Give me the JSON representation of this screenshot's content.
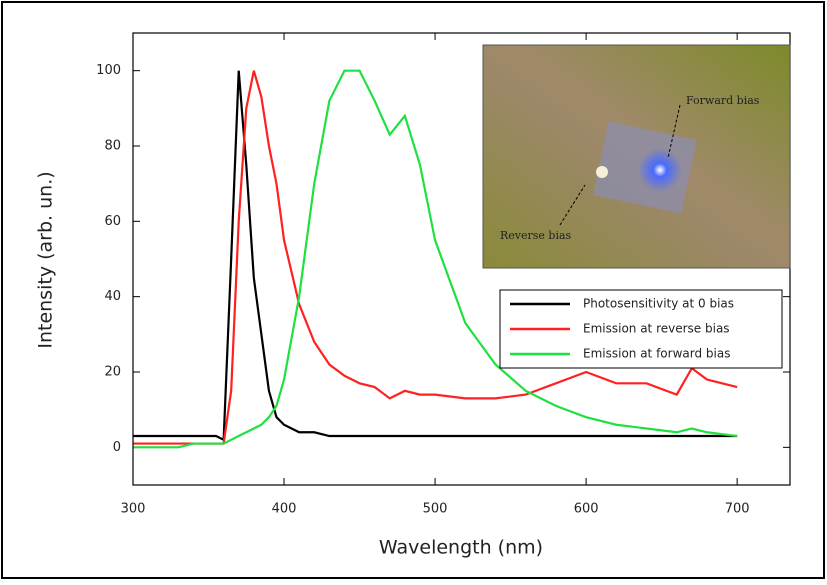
{
  "chart_data": {
    "type": "line",
    "x_label": "Wavelength (nm)",
    "y_label": "Intensity (arb. un.)",
    "x": [
      300,
      310,
      320,
      330,
      340,
      350,
      355,
      360,
      365,
      370,
      375,
      380,
      385,
      390,
      395,
      400,
      410,
      420,
      430,
      440,
      450,
      460,
      470,
      480,
      490,
      500,
      520,
      540,
      560,
      580,
      600,
      620,
      640,
      660,
      670,
      680,
      700
    ],
    "series": [
      {
        "name": "Photosensitivity at 0 bias",
        "color": "#000000",
        "values": [
          3,
          3,
          3,
          3,
          3,
          3,
          3,
          2,
          50,
          100,
          75,
          45,
          30,
          15,
          8,
          6,
          4,
          4,
          3,
          3,
          3,
          3,
          3,
          3,
          3,
          3,
          3,
          3,
          3,
          3,
          3,
          3,
          3,
          3,
          3,
          3,
          3
        ]
      },
      {
        "name": "Emission at reverse bias",
        "color": "#ff2020",
        "values": [
          1,
          1,
          1,
          1,
          1,
          1,
          1,
          1,
          15,
          60,
          90,
          100,
          93,
          80,
          70,
          55,
          38,
          28,
          22,
          19,
          17,
          16,
          13,
          15,
          14,
          14,
          13,
          13,
          14,
          17,
          20,
          17,
          17,
          14,
          21,
          18,
          16
        ]
      },
      {
        "name": "Emission at forward bias",
        "color": "#20e040",
        "values": [
          0,
          0,
          0,
          0,
          1,
          1,
          1,
          1,
          2,
          3,
          4,
          5,
          6,
          8,
          11,
          18,
          40,
          70,
          92,
          100,
          100,
          92,
          83,
          88,
          75,
          55,
          33,
          22,
          15,
          11,
          8,
          6,
          5,
          4,
          5,
          4,
          3
        ]
      }
    ],
    "xlim": [
      300,
      735
    ],
    "ylim": [
      -10,
      110
    ],
    "xticks": [
      300,
      400,
      500,
      600,
      700
    ],
    "yticks": [
      0,
      20,
      40,
      60,
      80,
      100
    ],
    "annotations": [
      "Forward bias",
      "Reverse bias"
    ]
  }
}
